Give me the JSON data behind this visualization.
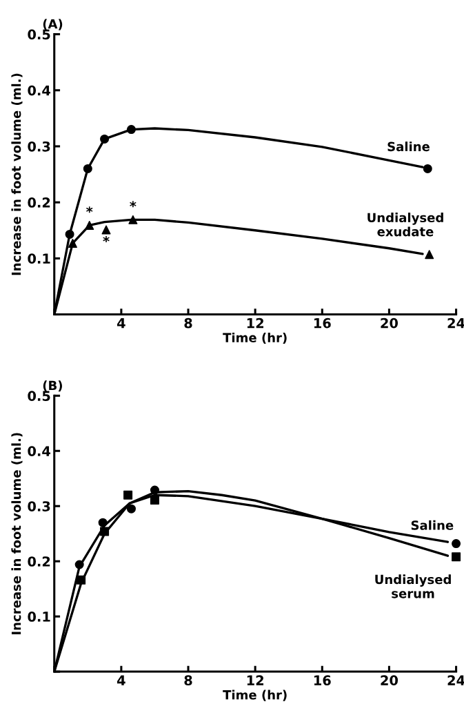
{
  "chart_data": [
    {
      "type": "line",
      "title": "(A)",
      "xlabel": "Time (hr)",
      "ylabel": "Increase in foot volume (ml.)",
      "xlim": [
        0,
        24
      ],
      "ylim": [
        0,
        0.5
      ],
      "xticks": [
        {
          "value": 0,
          "label": null
        },
        4,
        8,
        12,
        16,
        20,
        24
      ],
      "yticks": [
        {
          "value": 0,
          "label": null
        },
        0.1,
        0.2,
        0.3,
        0.4,
        0.5
      ],
      "grid": false,
      "legend": false,
      "line_style": "solid",
      "annotations": [
        {
          "text": "*",
          "x": 2.1,
          "y": 0.159
        },
        {
          "text": "*",
          "x": 3.1,
          "y": 0.151
        },
        {
          "text": "*",
          "x": 4.7,
          "y": 0.169
        }
      ],
      "series": [
        {
          "type": "scatter",
          "name": "Saline",
          "color": "#000000",
          "marker": "circle",
          "x": [
            0.92,
            2.0,
            3.0,
            4.6,
            22.3
          ],
          "values": [
            0.143,
            0.26,
            0.313,
            0.33,
            0.26
          ]
        },
        {
          "type": "scatter",
          "name": "Undialysed\nexudate",
          "color": "#000000",
          "marker": "triangle",
          "x": [
            1.1,
            2.1,
            3.1,
            4.7,
            22.4
          ],
          "values": [
            0.127,
            0.159,
            0.151,
            0.169,
            0.107
          ]
        },
        {
          "type": "line",
          "color": "#000000",
          "x": [
            0,
            0.92,
            2.0,
            3.0,
            4.6,
            6,
            8,
            12,
            16,
            20,
            22
          ],
          "values": [
            0,
            0.143,
            0.26,
            0.313,
            0.33,
            0.332,
            0.329,
            0.316,
            0.299,
            0.275,
            0.263
          ]
        },
        {
          "type": "line",
          "color": "#000000",
          "x": [
            0,
            1.1,
            2.1,
            3.0,
            4.6,
            6,
            8,
            12,
            16,
            20,
            22
          ],
          "values": [
            0,
            0.127,
            0.159,
            0.165,
            0.169,
            0.169,
            0.164,
            0.15,
            0.135,
            0.118,
            0.108
          ]
        }
      ]
    },
    {
      "type": "line",
      "title": "(B)",
      "xlabel": "Time (hr)",
      "ylabel": "Increase in foot volume (ml.)",
      "xlim": [
        0,
        24
      ],
      "ylim": [
        0,
        0.5
      ],
      "xticks": [
        {
          "value": 0,
          "label": null
        },
        4,
        8,
        12,
        16,
        20,
        24
      ],
      "yticks": [
        {
          "value": 0,
          "label": null
        },
        0.1,
        0.2,
        0.3,
        0.4,
        0.5
      ],
      "grid": false,
      "legend": false,
      "line_style": "solid",
      "series": [
        {
          "type": "scatter",
          "name": "Saline",
          "color": "#000000",
          "marker": "circle",
          "x": [
            1.5,
            2.9,
            4.6,
            6.0,
            24
          ],
          "values": [
            0.194,
            0.27,
            0.295,
            0.329,
            0.232
          ]
        },
        {
          "type": "scatter",
          "name": "Undialysed\nserum",
          "color": "#000000",
          "marker": "square",
          "x": [
            1.6,
            3.0,
            4.4,
            6.0,
            24
          ],
          "values": [
            0.166,
            0.254,
            0.32,
            0.311,
            0.208
          ]
        },
        {
          "type": "line",
          "color": "#000000",
          "x": [
            0,
            1.5,
            3,
            4.5,
            6,
            8,
            10,
            12,
            16,
            20,
            23.5
          ],
          "values": [
            0,
            0.19,
            0.265,
            0.305,
            0.325,
            0.327,
            0.32,
            0.31,
            0.277,
            0.253,
            0.235
          ]
        },
        {
          "type": "line",
          "color": "#000000",
          "x": [
            0,
            1.6,
            3,
            4.5,
            6,
            8,
            12,
            16,
            20,
            23.5
          ],
          "values": [
            0,
            0.16,
            0.25,
            0.305,
            0.32,
            0.318,
            0.3,
            0.277,
            0.242,
            0.21
          ]
        }
      ]
    }
  ]
}
